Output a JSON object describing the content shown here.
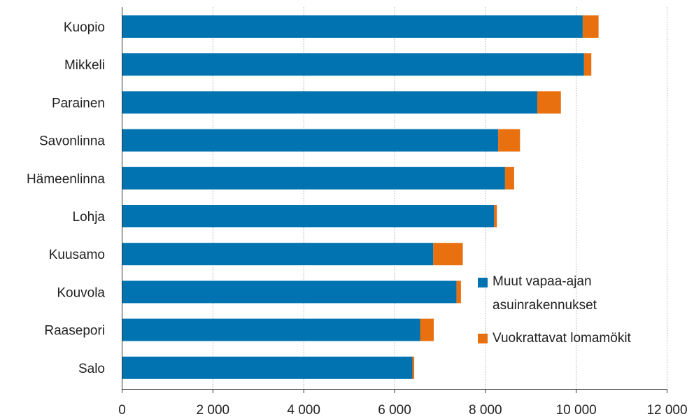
{
  "chart_data": {
    "type": "bar",
    "orientation": "horizontal",
    "stacked": true,
    "categories": [
      "Kuopio",
      "Mikkeli",
      "Parainen",
      "Savonlinna",
      "Hämeenlinna",
      "Lohja",
      "Kuusamo",
      "Kouvola",
      "Raasepori",
      "Salo"
    ],
    "series": [
      {
        "name": "Muut vapaa-ajan asuinrakennukset",
        "legend_lines": [
          "Muut vapaa-ajan",
          "asuinrakennukset"
        ],
        "color": "#0073b0",
        "values": [
          10150,
          10180,
          9150,
          8290,
          8440,
          8200,
          6860,
          7370,
          6570,
          6400
        ]
      },
      {
        "name": "Vuokrattavat lomamökit",
        "legend_lines": [
          "Vuokrattavat lomamökit"
        ],
        "color": "#e8700e",
        "values": [
          350,
          160,
          520,
          480,
          200,
          60,
          650,
          100,
          300,
          40
        ]
      }
    ],
    "xlim": [
      0,
      12000
    ],
    "xticks": [
      0,
      2000,
      4000,
      6000,
      8000,
      10000,
      12000
    ],
    "xtick_labels": [
      "0",
      "2 000",
      "4 000",
      "6 000",
      "8 000",
      "10 000",
      "12 000"
    ],
    "grid": "vertical dotted",
    "legend_position": "right"
  }
}
